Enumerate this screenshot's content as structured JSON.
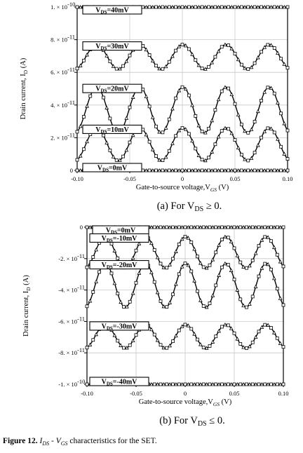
{
  "chart_data": [
    {
      "type": "line",
      "panel": "a",
      "xlabel": "Gate-to-source voltage,V",
      "xlabel_sub": "GS",
      "xlabel_unit": "(V)",
      "ylabel": "Drain current, I",
      "ylabel_sub": "D",
      "ylabel_unit": "(A)",
      "xlim": [
        -0.1,
        0.1
      ],
      "ylim": [
        0,
        1e-10
      ],
      "x_ticks": [
        "-0.10",
        "-0.05",
        "0",
        "0.05",
        "0.10"
      ],
      "y_ticks": [
        {
          "value": 1e-10,
          "label": "1. × 10"
        },
        {
          "value": 8e-11,
          "label": "8. × 10"
        },
        {
          "value": 6e-11,
          "label": "6. × 10"
        },
        {
          "value": 4e-11,
          "label": "4. × 10"
        },
        {
          "value": 2e-11,
          "label": "2. × 10"
        },
        {
          "value": 0,
          "label": "0"
        }
      ],
      "y_tick_exponents": [
        "-10",
        "-11",
        "-11",
        "-11",
        "-11",
        ""
      ],
      "grid": true,
      "period": 0.041,
      "phase_x": -0.0815,
      "series": [
        {
          "name": "VDS=40mV",
          "label_prefix": "V",
          "label_sub": "DS",
          "label_suffix": "=40mV",
          "min": 1e-10,
          "max": 1e-10
        },
        {
          "name": "VDS=30mV",
          "label_prefix": "V",
          "label_sub": "DS",
          "label_suffix": "=30mV",
          "min": 6.2e-11,
          "max": 7.7e-11
        },
        {
          "name": "VDS=20mV",
          "label_prefix": "V",
          "label_sub": "DS",
          "label_suffix": "=20mV",
          "min": 2.3e-11,
          "max": 5.1e-11
        },
        {
          "name": "VDS=10mV",
          "label_prefix": "V",
          "label_sub": "DS",
          "label_suffix": "=10mV",
          "min": 6e-12,
          "max": 2.6e-11
        },
        {
          "name": "VDS=0mV",
          "label_prefix": "V",
          "label_sub": "DS",
          "label_suffix": "=0mV",
          "min": 0,
          "max": 0
        }
      ],
      "caption_prefix": "(a) For V",
      "caption_sub": "DS",
      "caption_suffix": "≥ 0."
    },
    {
      "type": "line",
      "panel": "b",
      "xlabel": "Gate-to-source voltage,V",
      "xlabel_sub": "GS",
      "xlabel_unit": "(V)",
      "ylabel": "Drain current, I",
      "ylabel_sub": "D",
      "ylabel_unit": "(A)",
      "xlim": [
        -0.1,
        0.1
      ],
      "ylim": [
        -1e-10,
        0
      ],
      "x_ticks": [
        "-0.10",
        "-0.05",
        "0",
        "0.05",
        "0.10"
      ],
      "y_ticks": [
        {
          "value": 0,
          "label": "0"
        },
        {
          "value": -2e-11,
          "label": "-2. × 10"
        },
        {
          "value": -4e-11,
          "label": "-4. × 10"
        },
        {
          "value": -6e-11,
          "label": "-6. × 10"
        },
        {
          "value": -8e-11,
          "label": "-8. × 10"
        },
        {
          "value": -1e-10,
          "label": "-1. × 10"
        }
      ],
      "y_tick_exponents": [
        "",
        "-11",
        "-11",
        "-11",
        "-11",
        "-10"
      ],
      "grid": true,
      "period": 0.041,
      "phase_x": -0.0815,
      "series": [
        {
          "name": "VDS=0mV",
          "label_prefix": "V",
          "label_sub": "DS",
          "label_suffix": "=0mV",
          "min": 0,
          "max": 0
        },
        {
          "name": "VDS=-10mV",
          "label_prefix": "V",
          "label_sub": "DS",
          "label_suffix": "=-10mV",
          "min": -2.6e-11,
          "max": -6e-12
        },
        {
          "name": "VDS=-20mV",
          "label_prefix": "V",
          "label_sub": "DS",
          "label_suffix": "=-20mV",
          "min": -5.1e-11,
          "max": -2.3e-11
        },
        {
          "name": "VDS=-30mV",
          "label_prefix": "V",
          "label_sub": "DS",
          "label_suffix": "=-30mV",
          "min": -7.7e-11,
          "max": -6.2e-11
        },
        {
          "name": "VDS=-40mV",
          "label_prefix": "V",
          "label_sub": "DS",
          "label_suffix": "=-40mV",
          "min": -1e-10,
          "max": -1e-10
        }
      ],
      "caption_prefix": "(b) For V",
      "caption_sub": "DS",
      "caption_suffix": "≤ 0."
    }
  ],
  "figure_caption": {
    "label": "Figure 12",
    "dot": ". ",
    "i1": "I",
    "i1_sub": "DS",
    "dash": " - ",
    "i2": "V",
    "i2_sub": "GS",
    "rest": " characteristics for the SET."
  }
}
